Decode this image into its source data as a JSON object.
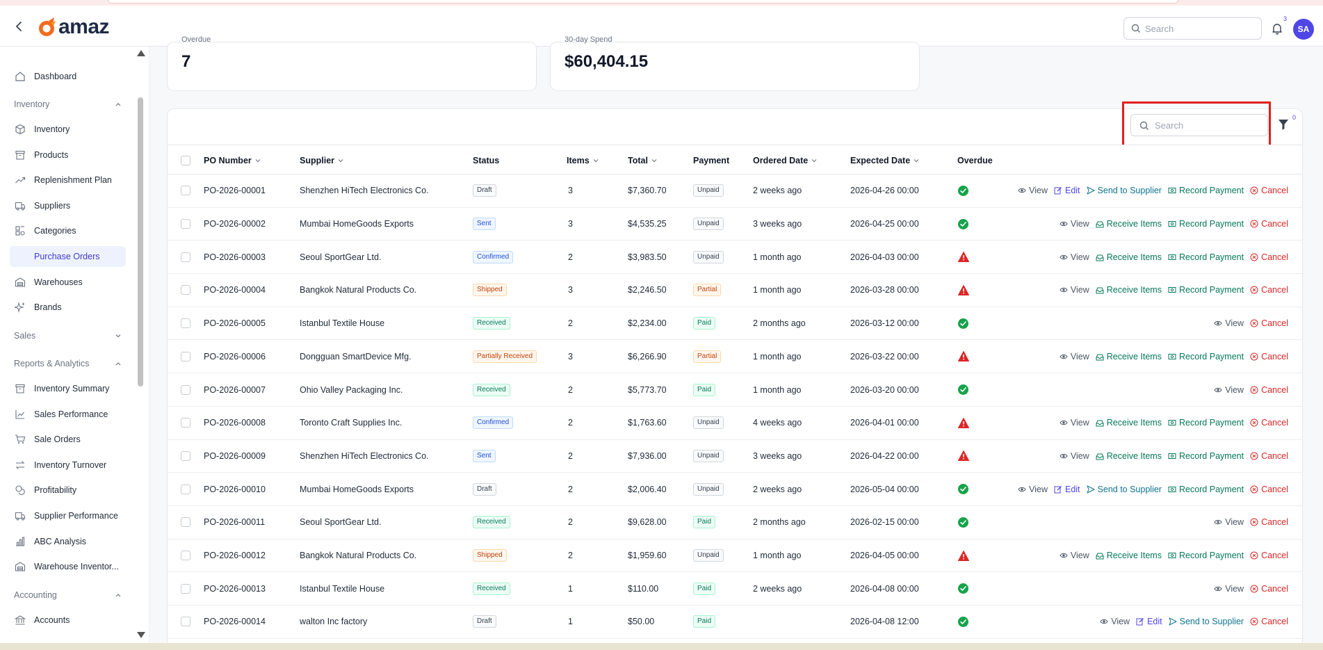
{
  "header": {
    "logo_text": "amaz",
    "search_placeholder": "Search",
    "notification_count": "3",
    "avatar_initials": "SA"
  },
  "sidebar": {
    "items_top": [
      {
        "label": "Dashboard",
        "icon": "home-icon"
      }
    ],
    "sections": [
      {
        "label": "Inventory",
        "expanded": true,
        "items": [
          {
            "label": "Inventory",
            "icon": "box-icon"
          },
          {
            "label": "Products",
            "icon": "archive-icon"
          },
          {
            "label": "Replenishment Plan",
            "icon": "trend-icon"
          },
          {
            "label": "Suppliers",
            "icon": "truck-icon"
          },
          {
            "label": "Categories",
            "icon": "shapes-icon"
          },
          {
            "label": "Purchase Orders",
            "icon": "",
            "active": true
          },
          {
            "label": "Warehouses",
            "icon": "warehouse-icon"
          },
          {
            "label": "Brands",
            "icon": "sparkle-icon"
          }
        ]
      },
      {
        "label": "Sales",
        "expanded": false,
        "items": []
      },
      {
        "label": "Reports & Analytics",
        "expanded": true,
        "items": [
          {
            "label": "Inventory Summary",
            "icon": "archive-icon"
          },
          {
            "label": "Sales Performance",
            "icon": "chart-icon"
          },
          {
            "label": "Sale Orders",
            "icon": "cart-icon"
          },
          {
            "label": "Inventory Turnover",
            "icon": "swap-icon"
          },
          {
            "label": "Profitability",
            "icon": "coins-icon"
          },
          {
            "label": "Supplier Performance",
            "icon": "truck-icon"
          },
          {
            "label": "ABC Analysis",
            "icon": "bar-icon"
          },
          {
            "label": "Warehouse Inventor...",
            "icon": "warehouse-icon"
          }
        ]
      },
      {
        "label": "Accounting",
        "expanded": true,
        "items": [
          {
            "label": "Accounts",
            "icon": "bank-icon"
          }
        ]
      }
    ]
  },
  "stats": [
    {
      "label": "Overdue",
      "value": "7"
    },
    {
      "label": "30-day Spend",
      "value": "$60,404.15"
    }
  ],
  "table": {
    "search_placeholder": "Search",
    "filter_count": "0",
    "columns": {
      "po_number": "PO Number",
      "supplier": "Supplier",
      "status": "Status",
      "items": "Items",
      "total": "Total",
      "payment": "Payment",
      "ordered_date": "Ordered Date",
      "expected_date": "Expected Date",
      "overdue": "Overdue"
    },
    "action_labels": {
      "view": "View",
      "edit": "Edit",
      "send": "Send to Supplier",
      "receive": "Receive Items",
      "record": "Record Payment",
      "cancel": "Cancel"
    },
    "rows": [
      {
        "po": "PO-2026-00001",
        "supplier": "Shenzhen HiTech Electronics Co.",
        "status": "Draft",
        "status_class": "draft",
        "items": "3",
        "total": "$7,360.70",
        "payment": "Unpaid",
        "pay_class": "unpaid",
        "ordered": "2 weeks ago",
        "expected": "2026-04-26 00:00",
        "overdue": false,
        "actions": [
          "view",
          "edit",
          "send",
          "record",
          "cancel"
        ]
      },
      {
        "po": "PO-2026-00002",
        "supplier": "Mumbai HomeGoods Exports",
        "status": "Sent",
        "status_class": "sent",
        "items": "3",
        "total": "$4,535.25",
        "payment": "Unpaid",
        "pay_class": "unpaid",
        "ordered": "3 weeks ago",
        "expected": "2026-04-25 00:00",
        "overdue": false,
        "actions": [
          "view",
          "receive",
          "record",
          "cancel"
        ]
      },
      {
        "po": "PO-2026-00003",
        "supplier": "Seoul SportGear Ltd.",
        "status": "Confirmed",
        "status_class": "confirmed",
        "items": "2",
        "total": "$3,983.50",
        "payment": "Unpaid",
        "pay_class": "unpaid",
        "ordered": "1 month ago",
        "expected": "2026-04-03 00:00",
        "overdue": true,
        "actions": [
          "view",
          "receive",
          "record",
          "cancel"
        ]
      },
      {
        "po": "PO-2026-00004",
        "supplier": "Bangkok Natural Products Co.",
        "status": "Shipped",
        "status_class": "shipped",
        "items": "3",
        "total": "$2,246.50",
        "payment": "Partial",
        "pay_class": "partial",
        "ordered": "1 month ago",
        "expected": "2026-03-28 00:00",
        "overdue": true,
        "actions": [
          "view",
          "receive",
          "record",
          "cancel"
        ]
      },
      {
        "po": "PO-2026-00005",
        "supplier": "Istanbul Textile House",
        "status": "Received",
        "status_class": "received",
        "items": "2",
        "total": "$2,234.00",
        "payment": "Paid",
        "pay_class": "paid",
        "ordered": "2 months ago",
        "expected": "2026-03-12 00:00",
        "overdue": false,
        "actions": [
          "view",
          "cancel"
        ]
      },
      {
        "po": "PO-2026-00006",
        "supplier": "Dongguan SmartDevice Mfg.",
        "status": "Partially Received",
        "status_class": "partially",
        "items": "3",
        "total": "$6,266.90",
        "payment": "Partial",
        "pay_class": "partial",
        "ordered": "1 month ago",
        "expected": "2026-03-22 00:00",
        "overdue": true,
        "actions": [
          "view",
          "receive",
          "record",
          "cancel"
        ]
      },
      {
        "po": "PO-2026-00007",
        "supplier": "Ohio Valley Packaging Inc.",
        "status": "Received",
        "status_class": "received",
        "items": "2",
        "total": "$5,773.70",
        "payment": "Paid",
        "pay_class": "paid",
        "ordered": "1 month ago",
        "expected": "2026-03-20 00:00",
        "overdue": false,
        "actions": [
          "view",
          "cancel"
        ]
      },
      {
        "po": "PO-2026-00008",
        "supplier": "Toronto Craft Supplies Inc.",
        "status": "Confirmed",
        "status_class": "confirmed",
        "items": "2",
        "total": "$1,763.60",
        "payment": "Unpaid",
        "pay_class": "unpaid",
        "ordered": "4 weeks ago",
        "expected": "2026-04-01 00:00",
        "overdue": true,
        "actions": [
          "view",
          "receive",
          "record",
          "cancel"
        ]
      },
      {
        "po": "PO-2026-00009",
        "supplier": "Shenzhen HiTech Electronics Co.",
        "status": "Sent",
        "status_class": "sent",
        "items": "2",
        "total": "$7,936.00",
        "payment": "Unpaid",
        "pay_class": "unpaid",
        "ordered": "3 weeks ago",
        "expected": "2026-04-22 00:00",
        "overdue": true,
        "actions": [
          "view",
          "receive",
          "record",
          "cancel"
        ]
      },
      {
        "po": "PO-2026-00010",
        "supplier": "Mumbai HomeGoods Exports",
        "status": "Draft",
        "status_class": "draft",
        "items": "2",
        "total": "$2,006.40",
        "payment": "Unpaid",
        "pay_class": "unpaid",
        "ordered": "2 weeks ago",
        "expected": "2026-05-04 00:00",
        "overdue": false,
        "actions": [
          "view",
          "edit",
          "send",
          "record",
          "cancel"
        ]
      },
      {
        "po": "PO-2026-00011",
        "supplier": "Seoul SportGear Ltd.",
        "status": "Received",
        "status_class": "received",
        "items": "2",
        "total": "$9,628.00",
        "payment": "Paid",
        "pay_class": "paid",
        "ordered": "2 months ago",
        "expected": "2026-02-15 00:00",
        "overdue": false,
        "actions": [
          "view",
          "cancel"
        ]
      },
      {
        "po": "PO-2026-00012",
        "supplier": "Bangkok Natural Products Co.",
        "status": "Shipped",
        "status_class": "shipped",
        "items": "2",
        "total": "$1,959.60",
        "payment": "Unpaid",
        "pay_class": "unpaid",
        "ordered": "1 month ago",
        "expected": "2026-04-05 00:00",
        "overdue": true,
        "actions": [
          "view",
          "receive",
          "record",
          "cancel"
        ]
      },
      {
        "po": "PO-2026-00013",
        "supplier": "Istanbul Textile House",
        "status": "Received",
        "status_class": "received",
        "items": "1",
        "total": "$110.00",
        "payment": "Paid",
        "pay_class": "paid",
        "ordered": "2 weeks ago",
        "expected": "2026-04-08 00:00",
        "overdue": false,
        "actions": [
          "view",
          "cancel"
        ]
      },
      {
        "po": "PO-2026-00014",
        "supplier": "walton Inc factory",
        "status": "Draft",
        "status_class": "draft",
        "items": "1",
        "total": "$50.00",
        "payment": "Paid",
        "pay_class": "paid",
        "ordered": "",
        "expected": "2026-04-08 12:00",
        "overdue": false,
        "actions": [
          "view",
          "edit",
          "send",
          "cancel"
        ]
      }
    ]
  },
  "colors": {
    "accent": "#4f46e5",
    "ok": "#16a34a",
    "danger": "#dc2626",
    "highlight_box": "#e11d1d"
  }
}
